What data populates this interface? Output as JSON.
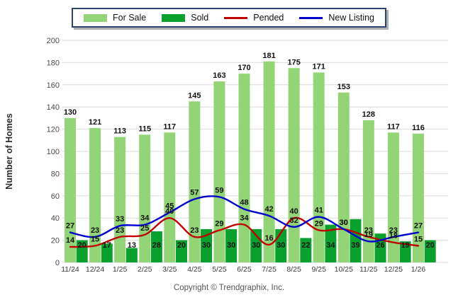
{
  "chart_data": {
    "type": "bar",
    "categories": [
      "11/24",
      "12/24",
      "1/25",
      "2/25",
      "3/25",
      "4/25",
      "5/25",
      "6/25",
      "7/25",
      "8/25",
      "9/25",
      "10/25",
      "11/25",
      "12/25",
      "1/26"
    ],
    "series": [
      {
        "name": "For Sale",
        "kind": "bar",
        "color": "#93D476",
        "values": [
          130,
          121,
          113,
          115,
          117,
          145,
          163,
          170,
          181,
          175,
          171,
          153,
          128,
          117,
          116
        ]
      },
      {
        "name": "Sold",
        "kind": "bar",
        "color": "#0AA02E",
        "values": [
          20,
          17,
          13,
          28,
          20,
          30,
          30,
          30,
          30,
          22,
          34,
          39,
          26,
          19,
          20
        ]
      },
      {
        "name": "Pended",
        "kind": "line",
        "color": "#C00000",
        "values": [
          14,
          15,
          23,
          25,
          40,
          23,
          29,
          34,
          16,
          40,
          29,
          30,
          23,
          18,
          15
        ]
      },
      {
        "name": "New Listing",
        "kind": "line",
        "color": "#0000CC",
        "values": [
          27,
          23,
          33,
          34,
          45,
          57,
          59,
          48,
          42,
          32,
          41,
          30,
          19,
          23,
          27
        ]
      }
    ],
    "title": "",
    "xlabel": "",
    "ylabel": "Number of Homes",
    "ylim": [
      0,
      200
    ],
    "ytick_step": 20,
    "grid": true,
    "legend_position": "top-center"
  },
  "palette": {
    "gridline": "#DBDBDB",
    "tick_text": "#4A4A4A",
    "axis_label_text": "#2B2B2B",
    "value_label": "#111111",
    "legend_border": "#2C4270",
    "footer_text": "#555555"
  },
  "footer": {
    "copyright": "Copyright © Trendgraphix, Inc."
  }
}
